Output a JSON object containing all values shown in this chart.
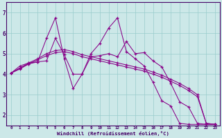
{
  "xlabel": "Windchill (Refroidissement éolien,°C)",
  "bg_color": "#cce8e8",
  "line_color": "#880088",
  "grid_color": "#99cccc",
  "axis_color": "#440066",
  "xlim": [
    -0.5,
    23.5
  ],
  "ylim": [
    1.5,
    7.5
  ],
  "yticks": [
    2,
    3,
    4,
    5,
    6,
    7
  ],
  "xticks": [
    0,
    1,
    2,
    3,
    4,
    5,
    6,
    7,
    8,
    9,
    10,
    11,
    12,
    13,
    14,
    15,
    16,
    17,
    18,
    19,
    20,
    21,
    22,
    23
  ],
  "series": [
    {
      "x": [
        0,
        1,
        2,
        3,
        4,
        5,
        6,
        7,
        8,
        9,
        10,
        11,
        12,
        13,
        14,
        15,
        16,
        17,
        18,
        19,
        20,
        21,
        22,
        23
      ],
      "y": [
        4.05,
        4.4,
        4.55,
        4.6,
        5.75,
        6.75,
        4.75,
        3.3,
        4.0,
        4.85,
        4.9,
        5.0,
        4.85,
        5.6,
        5.0,
        5.05,
        4.65,
        4.35,
        3.55,
        2.65,
        2.4,
        1.6,
        1.55,
        1.55
      ]
    },
    {
      "x": [
        0,
        1,
        2,
        3,
        4,
        5,
        6,
        7,
        8,
        9,
        10,
        11,
        12,
        13,
        14,
        15,
        16,
        17,
        18,
        19,
        20,
        21,
        22,
        23
      ],
      "y": [
        4.05,
        4.3,
        4.5,
        4.6,
        4.65,
        5.75,
        4.95,
        4.0,
        4.0,
        5.0,
        5.5,
        6.25,
        6.75,
        5.1,
        4.75,
        4.4,
        3.6,
        2.7,
        2.45,
        1.6,
        1.55,
        1.55,
        1.55,
        1.55
      ]
    },
    {
      "x": [
        0,
        1,
        2,
        3,
        4,
        5,
        6,
        7,
        8,
        9,
        10,
        11,
        12,
        13,
        14,
        15,
        16,
        17,
        18,
        19,
        20,
        21,
        22,
        23
      ],
      "y": [
        4.05,
        4.3,
        4.55,
        4.75,
        5.0,
        5.15,
        5.2,
        5.1,
        4.95,
        4.85,
        4.75,
        4.65,
        4.55,
        4.45,
        4.35,
        4.25,
        4.1,
        3.95,
        3.75,
        3.55,
        3.3,
        3.0,
        1.6,
        1.55
      ]
    },
    {
      "x": [
        0,
        1,
        2,
        3,
        4,
        5,
        6,
        7,
        8,
        9,
        10,
        11,
        12,
        13,
        14,
        15,
        16,
        17,
        18,
        19,
        20,
        21,
        22,
        23
      ],
      "y": [
        4.05,
        4.25,
        4.5,
        4.7,
        4.9,
        5.05,
        5.1,
        5.0,
        4.85,
        4.75,
        4.65,
        4.55,
        4.45,
        4.35,
        4.25,
        4.15,
        4.0,
        3.85,
        3.65,
        3.45,
        3.2,
        2.9,
        1.6,
        1.55
      ]
    }
  ]
}
